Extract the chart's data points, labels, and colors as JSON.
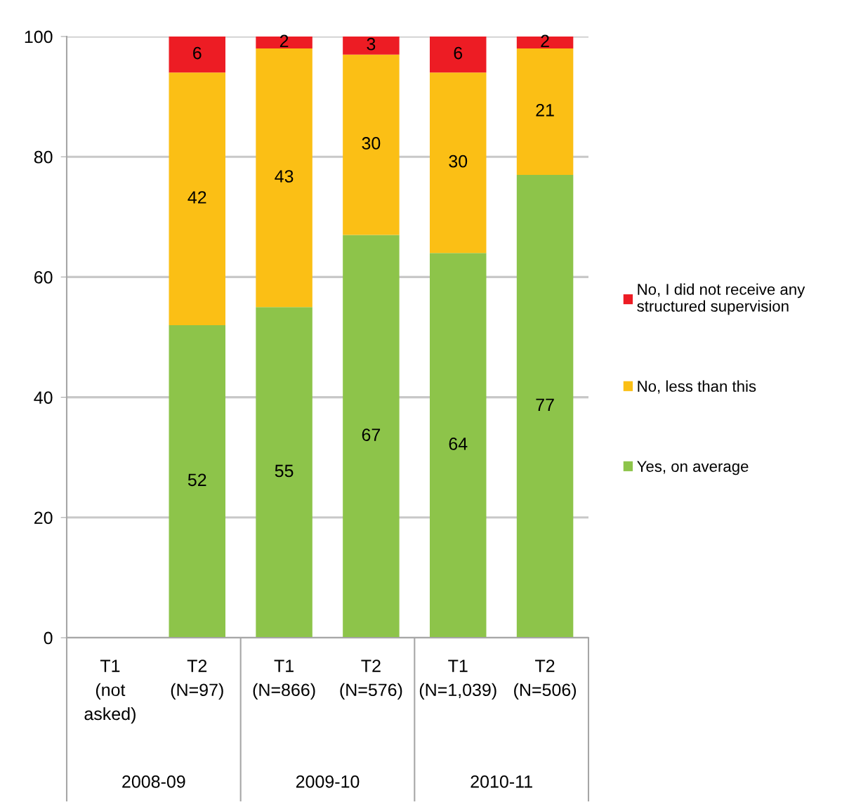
{
  "chart_data": {
    "type": "bar",
    "stacked": true,
    "categories": [
      "T1\n(not\nasked)",
      "T2\n(N=97)",
      "T1\n(N=866)",
      "T2\n(N=576)",
      "T1\n(N=1,039)",
      "T2\n(N=506)"
    ],
    "series": [
      {
        "name": "Yes, on average",
        "color": "#8dc44a",
        "values": [
          null,
          52,
          55,
          67,
          64,
          77
        ]
      },
      {
        "name": "No, less than this",
        "color": "#fbbf15",
        "values": [
          null,
          42,
          43,
          30,
          30,
          21
        ]
      },
      {
        "name": "No, I did not receive any\nstructured supervision",
        "color": "#ed1c24",
        "values": [
          null,
          6,
          2,
          3,
          6,
          2
        ]
      }
    ],
    "ylim": [
      0,
      100
    ],
    "yticks": [
      0,
      20,
      40,
      60,
      80,
      100
    ],
    "grid": "y",
    "legend": "right",
    "data_labels": true,
    "annotations": [
      "2008-09",
      "2009-10",
      "2010-11"
    ]
  }
}
